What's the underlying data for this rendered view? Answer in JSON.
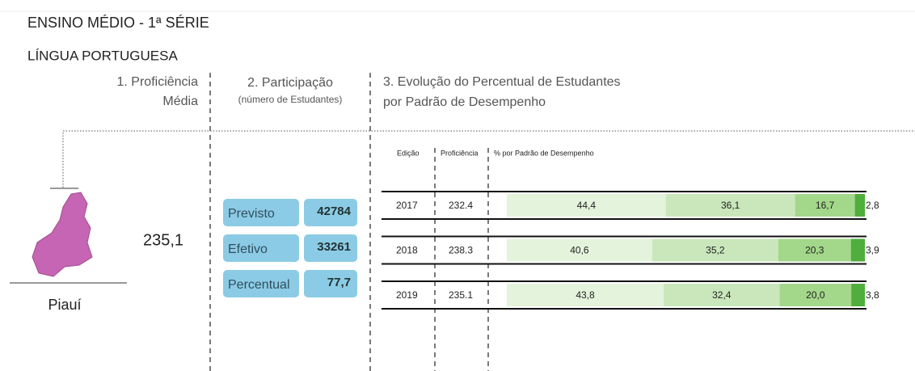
{
  "header": {
    "title": "ENSINO MÉDIO - 1ª SÉRIE",
    "subject": "LÍNGUA PORTUGUESA"
  },
  "columns": {
    "proficiency": [
      "1. Proficiência",
      "Média"
    ],
    "participation": {
      "title": "2. Participação",
      "subtitle": "(número de Estudantes)"
    },
    "evolution": [
      "3. Evolução do Percentual de Estudantes",
      "por Padrão de Desempenho"
    ]
  },
  "region": {
    "name": "Piauí",
    "proficiency": "235,1"
  },
  "participation": [
    {
      "label": "Previsto",
      "value": 42784
    },
    {
      "label": "Efetivo",
      "value": 33261
    },
    {
      "label": "Percentual",
      "value": "77,7"
    }
  ],
  "table": {
    "headers": [
      "Edição",
      "Proficiência",
      "% por Padrão de Desempenho"
    ],
    "colors": [
      "#e4f3dc",
      "#c9e7bb",
      "#a3d78a",
      "#4fae3c"
    ],
    "rows": [
      {
        "year": 2017,
        "proficiency": 232.4,
        "levels": [
          {
            "value": 44.4,
            "label": "44,4"
          },
          {
            "value": 36.1,
            "label": "36,1"
          },
          {
            "value": 16.7,
            "label": "16,7"
          },
          {
            "value": 2.8,
            "label": "2,8"
          }
        ]
      },
      {
        "year": 2018,
        "proficiency": 238.3,
        "levels": [
          {
            "value": 40.6,
            "label": "40,6"
          },
          {
            "value": 35.2,
            "label": "35,2"
          },
          {
            "value": 20.3,
            "label": "20,3"
          },
          {
            "value": 3.9,
            "label": "3,9"
          }
        ]
      },
      {
        "year": 2019,
        "proficiency": 235.1,
        "levels": [
          {
            "value": 43.8,
            "label": "43,8"
          },
          {
            "value": 32.4,
            "label": "32,4"
          },
          {
            "value": 20.0,
            "label": "20,0"
          },
          {
            "value": 3.8,
            "label": "3,8"
          }
        ]
      }
    ]
  }
}
